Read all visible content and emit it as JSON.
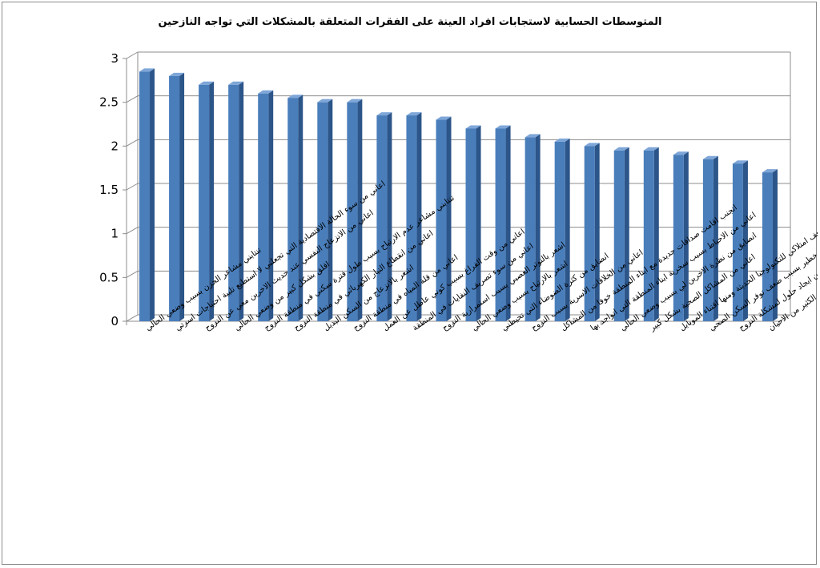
{
  "chart_data": {
    "type": "bar",
    "title": "المتوسطات الحسابية لاستجابات افراد العينة على الفقرات المتعلقة بالمشكلات التي تواجه النازحين",
    "xlabel": "",
    "ylabel": "",
    "ylim": [
      0,
      3
    ],
    "yticks": [
      0,
      0.5,
      1,
      1.5,
      2,
      2.5,
      3
    ],
    "ytick_labels": [
      "0",
      "0.5",
      "1",
      "1.5",
      "2",
      "2.5",
      "3"
    ],
    "grid": true,
    "legend": "none",
    "bar_color": "#4a7ebb",
    "categories": [
      "تنتابني مشاعر الحزن بسبب وضعي الحالي",
      "اعاني من سوء الحالة الاقتصادية التي تجعلني لا استطيع تلبية احتياجات اسرتي",
      "اعاني من الانزعاج النفسي عند حديث الاخرين معي عن النزوح",
      "اقلق بشكل كبير من وضعي الحالي",
      "تنتابني مشاعر عدم الارتياح بسبب طول فترة سكني في منطقة النزوح",
      "اعاني من انقطاع التيار الكهربائي في منطقة النزوح",
      "اشعر بالانزعاج من السكن البديل",
      "اعاني من قلة المياه في منطقة النزوح",
      "اعاني من وقت الفراغ بسبب كوني عاطل عن العمل",
      "اعاني من سوء تصريف النفايات في المنطقة",
      "اشعر بالتوتر العصبي بسبب استمرارية النزوح",
      "اشعر بالارتياح بسبب وضعي الحالي",
      "انضايق من كثرة الضوضاء التي تحيطني",
      "اعاني من الخلافات الاسرية بسبب النزوح",
      "اتجنب اقامت صداقات جديدة مع ابناء المنطقة خوفا من المشاكل",
      "اعاني من الاحباط بسبب سخرية ابناء المنطقة التي اتواجد بها",
      "انضايق من نظرة الاخرين لي بسبب وضعي الحالي",
      "اعاني من المشاكل الصحية بشكل كبير",
      "اشعر بالانزعاج بسبب ضعف امتلاكي للتكنولوجيا الحديثة ومنها اقتناء الموبايل",
      "تراودني فكرة الاصابة بمرض خطير بسبب ضعف توفر السكن الصحي",
      "اعاني من كثرة زيارة المسؤولين دون ايجاد حلول لمشكلة النزوح",
      "ابناء المنطقة التي اسكن بها حاليا يساعدوني في الكثير من الاحيان"
    ],
    "values": [
      2.85,
      2.8,
      2.7,
      2.7,
      2.6,
      2.55,
      2.5,
      2.5,
      2.35,
      2.35,
      2.3,
      2.2,
      2.2,
      2.1,
      2.05,
      2.0,
      1.95,
      1.95,
      1.9,
      1.85,
      1.8,
      1.7
    ]
  }
}
